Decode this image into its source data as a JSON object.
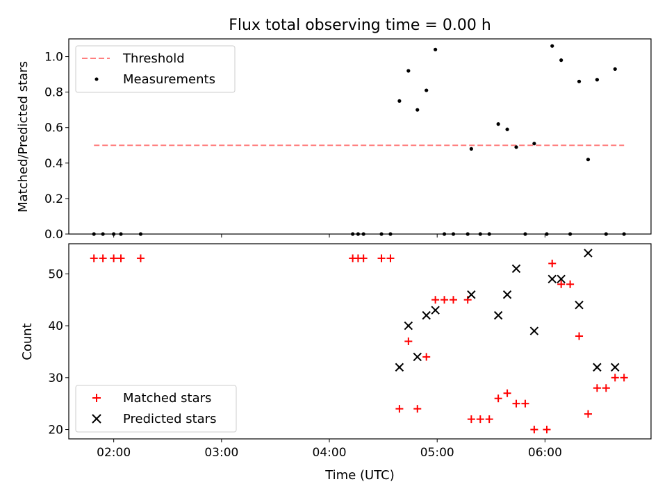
{
  "chart_data": [
    {
      "type": "scatter",
      "title": "Flux total observing time = 0.00 h",
      "xlabel": "",
      "ylabel": "Matched/Predicted stars",
      "ylim": [
        0,
        1.1
      ],
      "y_ticks": [
        "0.0",
        "0.2",
        "0.4",
        "0.6",
        "0.8",
        "1.0"
      ],
      "grid": false,
      "legend_position": "top-left",
      "legend": [
        "Threshold",
        "Measurements"
      ],
      "threshold": {
        "name": "Threshold",
        "value": 0.5,
        "x_start": "01:49",
        "x_end": "06:44",
        "color": "#ff7f7f"
      },
      "measurements": {
        "name": "Measurements",
        "color": "#000000",
        "points": [
          [
            "01:49",
            0.0
          ],
          [
            "01:54",
            0.0
          ],
          [
            "02:00",
            0.0
          ],
          [
            "02:04",
            0.0
          ],
          [
            "02:15",
            0.0
          ],
          [
            "04:13",
            0.0
          ],
          [
            "04:16",
            0.0
          ],
          [
            "04:19",
            0.0
          ],
          [
            "04:29",
            0.0
          ],
          [
            "04:34",
            0.0
          ],
          [
            "04:39",
            0.75
          ],
          [
            "04:44",
            0.92
          ],
          [
            "04:49",
            0.7
          ],
          [
            "04:54",
            0.81
          ],
          [
            "04:59",
            1.04
          ],
          [
            "05:04",
            0.0
          ],
          [
            "05:09",
            0.0
          ],
          [
            "05:17",
            0.0
          ],
          [
            "05:19",
            0.48
          ],
          [
            "05:24",
            0.0
          ],
          [
            "05:29",
            0.0
          ],
          [
            "05:34",
            0.62
          ],
          [
            "05:39",
            0.59
          ],
          [
            "05:44",
            0.49
          ],
          [
            "05:49",
            0.0
          ],
          [
            "05:54",
            0.51
          ],
          [
            "06:01",
            0.0
          ],
          [
            "06:04",
            1.06
          ],
          [
            "06:09",
            0.98
          ],
          [
            "06:14",
            0.0
          ],
          [
            "06:19",
            0.86
          ],
          [
            "06:24",
            0.42
          ],
          [
            "06:29",
            0.87
          ],
          [
            "06:34",
            0.0
          ],
          [
            "06:39",
            0.93
          ],
          [
            "06:44",
            0.0
          ]
        ]
      }
    },
    {
      "type": "scatter",
      "title": "",
      "xlabel": "Time (UTC)",
      "ylabel": "Count",
      "ylim": [
        18.2,
        55.8
      ],
      "xlim": [
        "01:35",
        "06:59"
      ],
      "x_ticks": [
        "02:00",
        "03:00",
        "04:00",
        "05:00",
        "06:00"
      ],
      "y_ticks": [
        "20",
        "30",
        "40",
        "50"
      ],
      "grid": false,
      "legend_position": "bottom-left",
      "legend": [
        "Matched stars",
        "Predicted stars"
      ],
      "series": [
        {
          "name": "Matched stars",
          "marker": "+",
          "color": "#ff0000",
          "points": [
            [
              "01:49",
              53
            ],
            [
              "01:54",
              53
            ],
            [
              "02:00",
              53
            ],
            [
              "02:04",
              53
            ],
            [
              "02:15",
              53
            ],
            [
              "04:13",
              53
            ],
            [
              "04:16",
              53
            ],
            [
              "04:19",
              53
            ],
            [
              "04:29",
              53
            ],
            [
              "04:34",
              53
            ],
            [
              "04:39",
              24
            ],
            [
              "04:44",
              37
            ],
            [
              "04:49",
              24
            ],
            [
              "04:54",
              34
            ],
            [
              "04:59",
              45
            ],
            [
              "05:04",
              45
            ],
            [
              "05:09",
              45
            ],
            [
              "05:17",
              45
            ],
            [
              "05:19",
              22
            ],
            [
              "05:24",
              22
            ],
            [
              "05:29",
              22
            ],
            [
              "05:34",
              26
            ],
            [
              "05:39",
              27
            ],
            [
              "05:44",
              25
            ],
            [
              "05:49",
              25
            ],
            [
              "05:54",
              20
            ],
            [
              "06:01",
              20
            ],
            [
              "06:04",
              52
            ],
            [
              "06:09",
              48
            ],
            [
              "06:14",
              48
            ],
            [
              "06:19",
              38
            ],
            [
              "06:24",
              23
            ],
            [
              "06:29",
              28
            ],
            [
              "06:34",
              28
            ],
            [
              "06:39",
              30
            ],
            [
              "06:44",
              30
            ]
          ]
        },
        {
          "name": "Predicted stars",
          "marker": "x",
          "color": "#000000",
          "points": [
            [
              "04:39",
              32
            ],
            [
              "04:44",
              40
            ],
            [
              "04:49",
              34
            ],
            [
              "04:54",
              42
            ],
            [
              "04:59",
              43
            ],
            [
              "05:19",
              46
            ],
            [
              "05:34",
              42
            ],
            [
              "05:39",
              46
            ],
            [
              "05:44",
              51
            ],
            [
              "05:54",
              39
            ],
            [
              "06:04",
              49
            ],
            [
              "06:09",
              49
            ],
            [
              "06:19",
              44
            ],
            [
              "06:24",
              54
            ],
            [
              "06:29",
              32
            ],
            [
              "06:39",
              32
            ]
          ]
        }
      ]
    }
  ]
}
